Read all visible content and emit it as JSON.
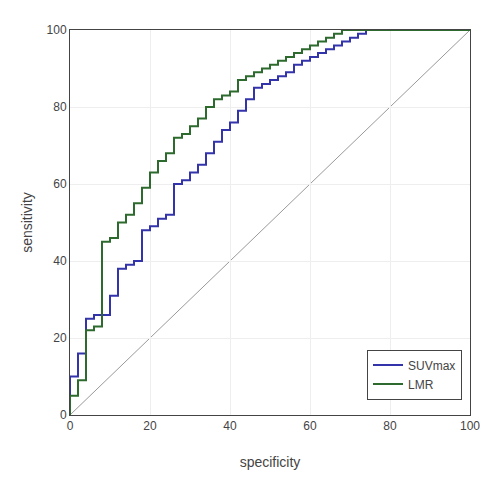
{
  "chart_data": {
    "type": "line",
    "x_label": "specificity",
    "y_label": "sensitivity",
    "x": [
      0,
      0,
      2,
      2,
      4,
      4,
      6,
      6,
      8,
      8,
      10,
      10,
      12,
      12,
      14,
      14,
      16,
      16,
      18,
      18,
      20,
      20,
      22,
      22,
      24,
      24,
      26,
      26,
      28,
      28,
      30,
      30,
      32,
      32,
      34,
      34,
      36,
      36,
      38,
      38,
      40,
      40,
      42,
      42,
      44,
      44,
      46,
      46,
      48,
      48,
      50,
      50,
      52,
      52,
      54,
      54,
      56,
      56,
      58,
      58,
      60,
      60,
      62,
      62,
      64,
      64,
      66,
      66,
      68,
      68,
      70,
      70,
      72,
      72,
      74,
      74,
      76,
      76,
      78,
      78,
      80,
      80,
      82,
      82,
      84,
      84,
      86,
      86,
      88,
      88,
      90,
      90,
      92,
      92,
      94,
      94,
      96,
      96,
      98,
      98,
      100,
      100
    ],
    "series": [
      {
        "name": "SUVmax",
        "color": "#3333aa",
        "values": [
          0,
          10,
          10,
          16,
          16,
          25,
          25,
          26,
          26,
          26,
          26,
          31,
          31,
          38,
          38,
          39,
          39,
          40,
          40,
          48,
          48,
          49,
          49,
          51,
          51,
          52,
          52,
          60,
          60,
          61,
          61,
          63,
          63,
          65,
          65,
          68,
          68,
          71,
          71,
          74,
          74,
          76,
          76,
          79,
          79,
          82,
          82,
          85,
          85,
          86,
          86,
          87,
          87,
          88,
          88,
          89,
          89,
          91,
          91,
          92,
          92,
          93,
          93,
          94,
          94,
          95,
          95,
          96,
          96,
          97,
          97,
          98,
          98,
          99,
          99,
          100,
          100,
          100,
          100,
          100,
          100,
          100,
          100,
          100,
          100,
          100,
          100,
          100,
          100,
          100,
          100,
          100,
          100,
          100,
          100,
          100,
          100,
          100,
          100,
          100,
          100,
          100
        ]
      },
      {
        "name": "LMR",
        "color": "#2d6a2d",
        "values": [
          0,
          5,
          5,
          9,
          9,
          22,
          22,
          23,
          23,
          45,
          45,
          46,
          46,
          50,
          50,
          52,
          52,
          55,
          55,
          59,
          59,
          63,
          63,
          66,
          66,
          68,
          68,
          72,
          72,
          73,
          73,
          75,
          75,
          77,
          77,
          80,
          80,
          82,
          82,
          83,
          83,
          84,
          84,
          87,
          87,
          88,
          88,
          89,
          89,
          90,
          90,
          91,
          91,
          92,
          92,
          93,
          93,
          94,
          94,
          95,
          95,
          96,
          96,
          97,
          97,
          98,
          98,
          99,
          99,
          100,
          100,
          100,
          100,
          100,
          100,
          100,
          100,
          100,
          100,
          100,
          100,
          100,
          100,
          100,
          100,
          100,
          100,
          100,
          100,
          100,
          100,
          100,
          100,
          100,
          100,
          100,
          100,
          100,
          100,
          100,
          100,
          100
        ]
      }
    ],
    "xlim": [
      0,
      100
    ],
    "ylim": [
      0,
      100
    ],
    "xticks": [
      0,
      20,
      40,
      60,
      80,
      100
    ],
    "yticks": [
      0,
      20,
      40,
      60,
      80,
      100
    ],
    "grid": true,
    "legend": "lower right"
  }
}
